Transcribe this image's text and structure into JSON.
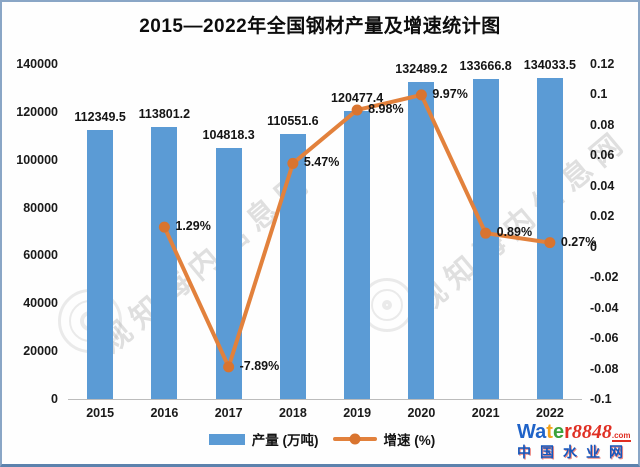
{
  "title": "2015—2022年全国钢材产量及增速统计图",
  "chart_data": {
    "type": "bar+line",
    "categories": [
      "2015",
      "2016",
      "2017",
      "2018",
      "2019",
      "2020",
      "2021",
      "2022"
    ],
    "series": [
      {
        "name": "产量 (万吨)",
        "type": "bar",
        "color": "#5b9bd5",
        "values": [
          112349.5,
          113801.2,
          104818.3,
          110551.6,
          120477.4,
          132489.2,
          133666.8,
          134033.5
        ],
        "labels": [
          "112349.5",
          "113801.2",
          "104818.3",
          "110551.6",
          "120477.4",
          "132489.2",
          "133666.8",
          "134033.5"
        ]
      },
      {
        "name": "增速 (%)",
        "type": "line",
        "color": "#e2813c",
        "marker_color": "#d9742f",
        "values": [
          null,
          0.0129,
          -0.0789,
          0.0547,
          0.0898,
          0.0997,
          0.0089,
          0.0027
        ],
        "labels": [
          "",
          "1.29%",
          "-7.89%",
          "5.47%",
          "8.98%",
          "9.97%",
          "0.89%",
          "0.27%"
        ]
      }
    ],
    "left_axis": {
      "min": 0,
      "max": 140000,
      "ticks": [
        "140000",
        "120000",
        "100000",
        "80000",
        "60000",
        "40000",
        "20000",
        "0"
      ]
    },
    "right_axis": {
      "min": -0.1,
      "max": 0.12,
      "ticks": [
        "0.12",
        "0.1",
        "0.08",
        "0.06",
        "0.04",
        "0.02",
        "0",
        "-0.02",
        "-0.04",
        "-0.06",
        "-0.08",
        "-0.1"
      ]
    },
    "legend": [
      {
        "label": "产量 (万吨)",
        "swatch": "bar"
      },
      {
        "label": "增速 (%)",
        "swatch": "line"
      }
    ],
    "grid": "off",
    "legend_position": "bottom-center"
  },
  "watermark": {
    "text": "观知海内信息网"
  },
  "logo": {
    "brand_letters": [
      {
        "t": "W",
        "c": "#1f63c8"
      },
      {
        "t": "a",
        "c": "#1f63c8"
      },
      {
        "t": "t",
        "c": "#f2a21a"
      },
      {
        "t": "e",
        "c": "#3ba23b"
      },
      {
        "t": "r",
        "c": "#e02f23"
      }
    ],
    "brand_number": "8848",
    "brand_tld": ".com",
    "subtitle": "中国水业网"
  }
}
